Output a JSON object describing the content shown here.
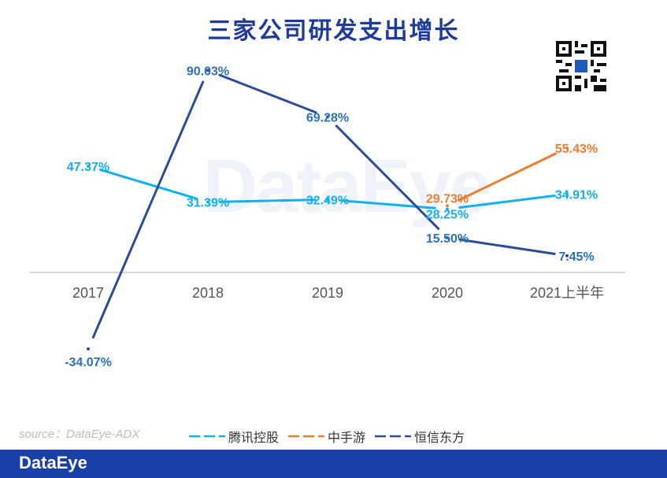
{
  "title": "三家公司研发支出增长",
  "watermark": "DataEye",
  "source": "source：DataEye-ADX",
  "footer_logo": "DataEye",
  "chart_data": {
    "type": "line",
    "title": "三家公司研发支出增长",
    "categories": [
      "2017",
      "2018",
      "2019",
      "2020",
      "2021上半年"
    ],
    "ylim": [
      -40,
      100
    ],
    "grid": false,
    "legend_position": "bottom",
    "series": [
      {
        "name": "腾讯控股",
        "color": "#12b0f0",
        "values": [
          47.37,
          31.39,
          32.49,
          28.25,
          34.91
        ],
        "labels": [
          "47.37%",
          "31.39%",
          "32.49%",
          "28.25%",
          "34.91%"
        ]
      },
      {
        "name": "中手游",
        "color": "#ec7c30",
        "values": [
          null,
          null,
          null,
          29.73,
          55.43
        ],
        "labels": [
          "",
          "",
          "",
          "29.73%",
          "55.43%"
        ]
      },
      {
        "name": "恒信东方",
        "color": "#2c4d96",
        "values": [
          -34.07,
          90.03,
          69.28,
          15.5,
          7.45
        ],
        "labels": [
          "-34.07%",
          "90.03%",
          "69.28%",
          "15.50%",
          "7.45%"
        ]
      }
    ]
  }
}
